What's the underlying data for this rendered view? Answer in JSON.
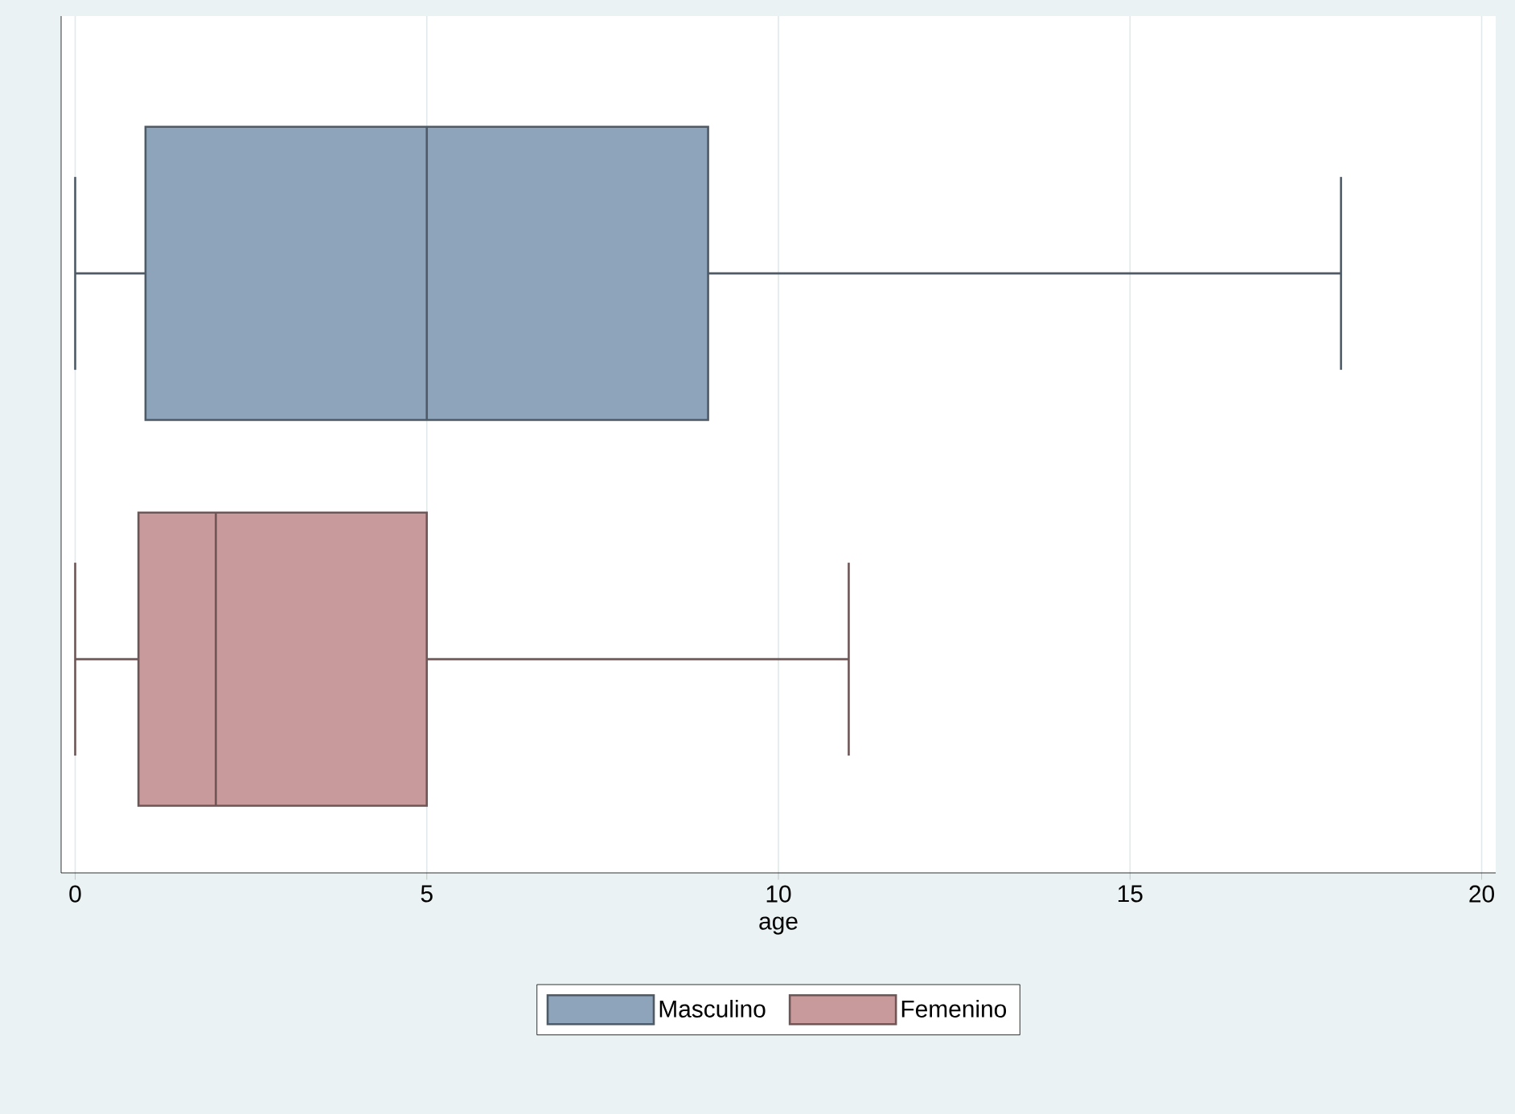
{
  "chart_data": {
    "type": "box",
    "orientation": "horizontal",
    "categories": [
      null
    ],
    "series": [
      {
        "name": "Masculino",
        "color": "#8da4ba",
        "boxes": [
          {
            "low": 0,
            "q1": 1,
            "median": 5,
            "q3": 9,
            "high": 18
          }
        ]
      },
      {
        "name": "Femenino",
        "color": "#c89a9c",
        "boxes": [
          {
            "low": 0,
            "q1": 0.9,
            "median": 2,
            "q3": 5,
            "high": 11
          }
        ]
      }
    ],
    "xlabel": "age",
    "xlim": [
      -0.2,
      20.2
    ],
    "xticks": [
      0,
      5,
      10,
      15,
      20
    ],
    "grid": "x",
    "legend": "bottom"
  }
}
